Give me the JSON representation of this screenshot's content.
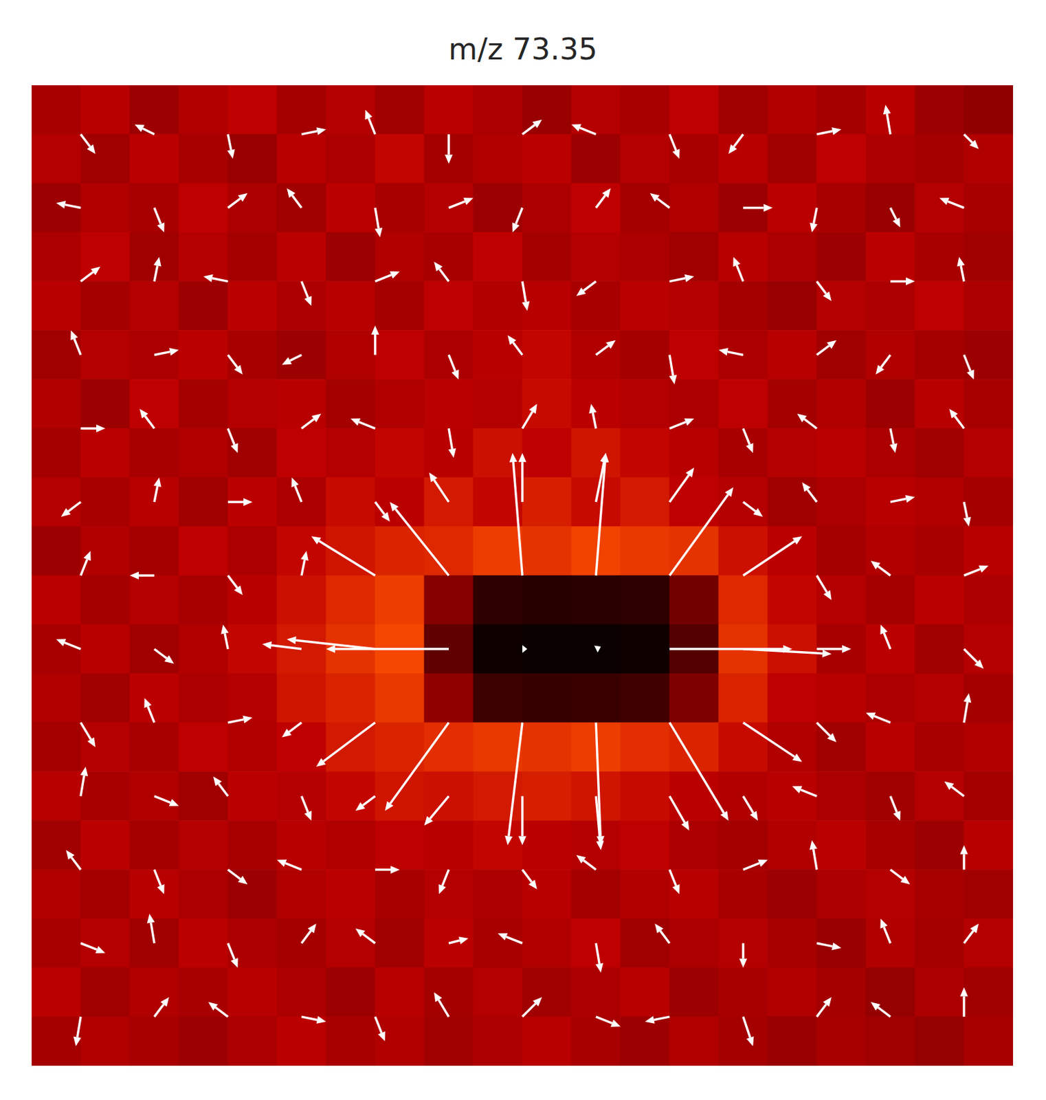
{
  "chart_data": {
    "type": "heatmap",
    "title": "m/z 73.35",
    "xlim": [
      0,
      20
    ],
    "ylim": [
      0,
      20
    ],
    "tick_labels": false,
    "clim": [
      0,
      1
    ],
    "cells": [
      [
        0.44,
        0.48,
        0.41,
        0.46,
        0.5,
        0.43,
        0.47,
        0.42,
        0.49,
        0.45,
        0.4,
        0.47,
        0.44,
        0.5,
        0.42,
        0.46,
        0.43,
        0.48,
        0.41,
        0.38
      ],
      [
        0.47,
        0.42,
        0.49,
        0.44,
        0.4,
        0.48,
        0.45,
        0.51,
        0.43,
        0.46,
        0.49,
        0.41,
        0.47,
        0.44,
        0.48,
        0.42,
        0.5,
        0.45,
        0.43,
        0.46
      ],
      [
        0.41,
        0.46,
        0.44,
        0.5,
        0.45,
        0.42,
        0.49,
        0.44,
        0.47,
        0.41,
        0.45,
        0.5,
        0.43,
        0.46,
        0.41,
        0.49,
        0.44,
        0.4,
        0.47,
        0.44
      ],
      [
        0.45,
        0.5,
        0.42,
        0.47,
        0.43,
        0.49,
        0.41,
        0.46,
        0.44,
        0.5,
        0.43,
        0.47,
        0.45,
        0.42,
        0.48,
        0.45,
        0.41,
        0.49,
        0.44,
        0.42
      ],
      [
        0.48,
        0.43,
        0.47,
        0.41,
        0.49,
        0.45,
        0.48,
        0.43,
        0.5,
        0.46,
        0.48,
        0.44,
        0.49,
        0.47,
        0.43,
        0.4,
        0.47,
        0.45,
        0.5,
        0.45
      ],
      [
        0.42,
        0.47,
        0.45,
        0.49,
        0.44,
        0.41,
        0.46,
        0.5,
        0.45,
        0.48,
        0.51,
        0.46,
        0.43,
        0.5,
        0.45,
        0.48,
        0.42,
        0.46,
        0.43,
        0.41
      ],
      [
        0.46,
        0.41,
        0.5,
        0.43,
        0.47,
        0.48,
        0.43,
        0.46,
        0.49,
        0.47,
        0.52,
        0.49,
        0.47,
        0.45,
        0.5,
        0.43,
        0.46,
        0.41,
        0.48,
        0.44
      ],
      [
        0.43,
        0.49,
        0.44,
        0.46,
        0.42,
        0.5,
        0.47,
        0.51,
        0.48,
        0.53,
        0.5,
        0.54,
        0.51,
        0.48,
        0.44,
        0.47,
        0.49,
        0.45,
        0.42,
        0.47
      ],
      [
        0.47,
        0.44,
        0.48,
        0.42,
        0.49,
        0.45,
        0.52,
        0.49,
        0.55,
        0.51,
        0.56,
        0.52,
        0.55,
        0.5,
        0.47,
        0.42,
        0.45,
        0.48,
        0.46,
        0.43
      ],
      [
        0.41,
        0.46,
        0.43,
        0.5,
        0.45,
        0.51,
        0.54,
        0.57,
        0.58,
        0.62,
        0.6,
        0.63,
        0.61,
        0.6,
        0.53,
        0.49,
        0.43,
        0.46,
        0.44,
        0.48
      ],
      [
        0.49,
        0.43,
        0.47,
        0.44,
        0.48,
        0.53,
        0.58,
        0.62,
        0.35,
        0.12,
        0.1,
        0.11,
        0.12,
        0.3,
        0.58,
        0.51,
        0.47,
        0.43,
        0.49,
        0.45
      ],
      [
        0.44,
        0.48,
        0.42,
        0.46,
        0.51,
        0.55,
        0.6,
        0.64,
        0.25,
        0.04,
        0.03,
        0.03,
        0.04,
        0.22,
        0.6,
        0.53,
        0.44,
        0.49,
        0.42,
        0.47
      ],
      [
        0.46,
        0.42,
        0.49,
        0.45,
        0.47,
        0.54,
        0.57,
        0.61,
        0.38,
        0.16,
        0.14,
        0.15,
        0.17,
        0.33,
        0.57,
        0.5,
        0.48,
        0.45,
        0.47,
        0.43
      ],
      [
        0.43,
        0.47,
        0.44,
        0.5,
        0.46,
        0.5,
        0.55,
        0.57,
        0.59,
        0.61,
        0.6,
        0.62,
        0.59,
        0.57,
        0.52,
        0.46,
        0.42,
        0.48,
        0.44,
        0.46
      ],
      [
        0.48,
        0.44,
        0.46,
        0.42,
        0.49,
        0.47,
        0.51,
        0.54,
        0.53,
        0.55,
        0.56,
        0.54,
        0.52,
        0.49,
        0.46,
        0.48,
        0.45,
        0.42,
        0.47,
        0.43
      ],
      [
        0.42,
        0.49,
        0.43,
        0.47,
        0.44,
        0.48,
        0.46,
        0.5,
        0.48,
        0.51,
        0.49,
        0.47,
        0.5,
        0.45,
        0.43,
        0.46,
        0.49,
        0.44,
        0.41,
        0.48
      ],
      [
        0.46,
        0.43,
        0.48,
        0.45,
        0.41,
        0.46,
        0.49,
        0.44,
        0.47,
        0.45,
        0.48,
        0.43,
        0.46,
        0.48,
        0.44,
        0.41,
        0.45,
        0.47,
        0.44,
        0.42
      ],
      [
        0.44,
        0.47,
        0.42,
        0.49,
        0.45,
        0.43,
        0.47,
        0.42,
        0.49,
        0.44,
        0.46,
        0.5,
        0.42,
        0.45,
        0.47,
        0.44,
        0.4,
        0.46,
        0.43,
        0.47
      ],
      [
        0.49,
        0.42,
        0.46,
        0.44,
        0.48,
        0.45,
        0.41,
        0.48,
        0.43,
        0.47,
        0.42,
        0.45,
        0.48,
        0.41,
        0.44,
        0.46,
        0.43,
        0.39,
        0.45,
        0.42
      ],
      [
        0.43,
        0.46,
        0.44,
        0.41,
        0.45,
        0.49,
        0.44,
        0.46,
        0.42,
        0.45,
        0.48,
        0.44,
        0.41,
        0.46,
        0.43,
        0.4,
        0.44,
        0.42,
        0.39,
        0.44
      ]
    ],
    "arrows": {
      "type": "quiver",
      "color": "#ffffff",
      "x": [
        1,
        2.5,
        4,
        5.5,
        7,
        8.5,
        10,
        11.5,
        13,
        14.5,
        16,
        17.5,
        19
      ],
      "y": [
        19,
        17.5,
        16,
        14.5,
        13,
        11.5,
        10,
        8.5,
        7,
        5.5,
        4,
        2.5,
        1
      ],
      "u": [
        [
          0.3,
          -0.4,
          0.1,
          0.5,
          -0.2,
          0.0,
          0.4,
          -0.5,
          0.2,
          -0.3,
          0.5,
          -0.1,
          0.3
        ],
        [
          -0.5,
          0.2,
          0.4,
          -0.3,
          0.1,
          0.5,
          -0.2,
          0.3,
          -0.4,
          0.6,
          -0.1,
          0.2,
          -0.5
        ],
        [
          0.4,
          0.1,
          -0.5,
          0.2,
          0.5,
          -0.3,
          0.1,
          -0.4,
          0.5,
          -0.2,
          0.3,
          0.5,
          -0.1
        ],
        [
          -0.2,
          0.5,
          0.3,
          -0.4,
          0.0,
          0.2,
          -0.3,
          0.4,
          0.1,
          -0.5,
          0.4,
          -0.3,
          0.2
        ],
        [
          0.5,
          -0.3,
          0.2,
          0.4,
          -0.5,
          0.1,
          0.3,
          -0.1,
          0.5,
          0.2,
          -0.4,
          0.1,
          -0.3
        ],
        [
          -0.4,
          0.1,
          0.5,
          -0.2,
          0.3,
          -0.4,
          0.0,
          0.2,
          0.5,
          0.4,
          -0.3,
          0.5,
          0.1
        ],
        [
          0.2,
          -0.5,
          0.3,
          0.1,
          -1.3,
          -1.2,
          -0.2,
          0.2,
          1.3,
          1.2,
          0.3,
          -0.4,
          0.5
        ],
        [
          -0.5,
          0.4,
          -0.1,
          -0.8,
          -1.8,
          -2.5,
          0.1,
          0.1,
          2.5,
          1.8,
          0.7,
          -0.2,
          0.4
        ],
        [
          0.3,
          -0.2,
          0.5,
          -0.4,
          -1.2,
          -1.3,
          -0.3,
          0.1,
          1.2,
          1.2,
          0.4,
          -0.5,
          0.1
        ],
        [
          0.1,
          0.5,
          -0.3,
          0.2,
          -0.4,
          -0.5,
          0.0,
          0.1,
          0.4,
          0.3,
          -0.5,
          0.2,
          -0.4
        ],
        [
          -0.3,
          0.2,
          0.4,
          -0.5,
          0.5,
          -0.2,
          0.3,
          -0.4,
          0.2,
          0.5,
          -0.1,
          0.4,
          0.0
        ],
        [
          0.5,
          -0.1,
          0.2,
          0.3,
          -0.4,
          0.4,
          -0.5,
          0.1,
          -0.3,
          0.0,
          0.5,
          -0.2,
          0.3
        ],
        [
          -0.1,
          0.3,
          -0.4,
          0.5,
          0.2,
          -0.3,
          0.4,
          0.5,
          -0.5,
          0.2,
          0.3,
          -0.4,
          0.0
        ]
      ],
      "v": [
        [
          -0.4,
          0.2,
          -0.5,
          0.1,
          0.5,
          -0.6,
          0.3,
          0.2,
          -0.5,
          -0.4,
          0.1,
          0.6,
          -0.3
        ],
        [
          0.1,
          -0.5,
          0.3,
          0.4,
          -0.6,
          0.2,
          -0.5,
          0.4,
          0.3,
          0.0,
          -0.5,
          -0.4,
          0.2
        ],
        [
          0.3,
          0.5,
          0.1,
          -0.5,
          0.2,
          0.4,
          -0.6,
          -0.3,
          0.1,
          0.5,
          -0.4,
          0.0,
          0.5
        ],
        [
          0.5,
          0.1,
          -0.4,
          -0.2,
          0.6,
          -0.5,
          0.4,
          0.3,
          -0.6,
          0.1,
          0.3,
          -0.4,
          -0.5
        ],
        [
          0.0,
          0.4,
          -0.5,
          0.3,
          0.2,
          -0.6,
          0.5,
          0.5,
          0.2,
          -0.5,
          0.3,
          -0.5,
          0.4
        ],
        [
          -0.3,
          0.5,
          0.0,
          0.5,
          -0.4,
          0.6,
          1.0,
          1.0,
          0.7,
          -0.3,
          0.4,
          0.1,
          -0.5
        ],
        [
          0.5,
          0.0,
          -0.4,
          0.5,
          0.8,
          1.5,
          2.5,
          2.5,
          1.8,
          0.8,
          -0.5,
          0.3,
          0.2
        ],
        [
          0.2,
          -0.3,
          0.5,
          0.1,
          0.2,
          0.0,
          0.0,
          0.05,
          0.0,
          -0.1,
          0.0,
          0.5,
          -0.4
        ],
        [
          -0.5,
          0.5,
          0.1,
          -0.3,
          -0.9,
          -1.8,
          -2.5,
          -2.5,
          -2.0,
          -0.8,
          -0.4,
          0.2,
          0.6
        ],
        [
          0.6,
          -0.2,
          0.4,
          -0.5,
          -0.3,
          -0.6,
          -1.0,
          -1.1,
          -0.7,
          -0.5,
          0.2,
          -0.5,
          0.3
        ],
        [
          0.4,
          -0.5,
          -0.3,
          0.2,
          0.0,
          -0.5,
          -0.4,
          0.3,
          -0.5,
          0.2,
          0.6,
          -0.3,
          0.5
        ],
        [
          -0.2,
          0.6,
          -0.5,
          0.4,
          0.3,
          0.1,
          0.2,
          -0.6,
          0.4,
          -0.5,
          -0.1,
          0.5,
          0.4
        ],
        [
          -0.6,
          0.4,
          0.3,
          -0.1,
          -0.5,
          0.5,
          0.4,
          -0.2,
          -0.1,
          -0.6,
          0.4,
          0.3,
          0.6
        ]
      ]
    }
  }
}
